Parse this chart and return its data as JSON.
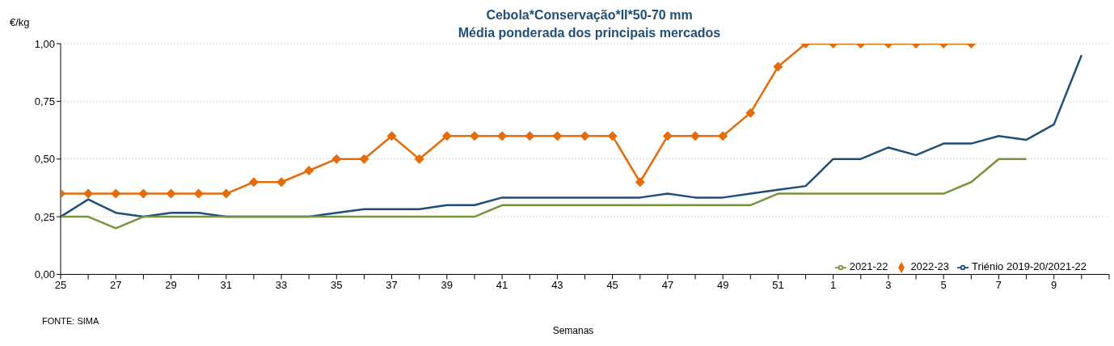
{
  "chart_data": {
    "type": "line",
    "title": "Cebola*Conservação*II*50-70 mm",
    "subtitle": "Média ponderada dos principais mercados",
    "ylabel": "€/kg",
    "xlabel": "Semanas",
    "annotations": [
      "FONTE: SIMA"
    ],
    "categories": [
      "25",
      null,
      "27",
      null,
      "29",
      null,
      "31",
      null,
      "33",
      null,
      "35",
      null,
      "37",
      null,
      "39",
      null,
      "41",
      null,
      "43",
      null,
      "45",
      null,
      "47",
      null,
      "49",
      null,
      "51",
      null,
      "1",
      null,
      "3",
      null,
      "5",
      null,
      "7",
      null,
      "9",
      null
    ],
    "ylim": [
      0,
      1
    ],
    "yticks": [
      {
        "value": 0,
        "label": "0,00"
      },
      {
        "value": 0.25,
        "label": "0,25"
      },
      {
        "value": 0.5,
        "label": "0,50"
      },
      {
        "value": 0.75,
        "label": "0,75"
      },
      {
        "value": 1,
        "label": "1,00"
      }
    ],
    "grid": "y",
    "legend": "bottom right",
    "line_style": "solid",
    "series": [
      {
        "name": "Triénio 2019-20/2021-22",
        "color": "#1f4e79",
        "marker": "none",
        "values": [
          0.25,
          0.325,
          0.267,
          0.25,
          0.267,
          0.267,
          0.25,
          0.25,
          0.25,
          0.25,
          0.267,
          0.283,
          0.283,
          0.283,
          0.3,
          0.3,
          0.333,
          0.333,
          0.333,
          0.333,
          0.333,
          0.333,
          0.35,
          0.333,
          0.333,
          0.35,
          0.367,
          0.383,
          0.5,
          0.5,
          0.55,
          0.517,
          0.567,
          0.567,
          0.6,
          0.583,
          0.65,
          0.95
        ]
      },
      {
        "name": "2021-22",
        "color": "#77933c",
        "marker": "none",
        "values": [
          0.25,
          0.25,
          0.2,
          0.25,
          0.25,
          0.25,
          0.25,
          0.25,
          0.25,
          0.25,
          0.25,
          0.25,
          0.25,
          0.25,
          0.25,
          0.25,
          0.3,
          0.3,
          0.3,
          0.3,
          0.3,
          0.3,
          0.3,
          0.3,
          0.3,
          0.3,
          0.35,
          0.35,
          0.35,
          0.35,
          0.35,
          0.35,
          0.35,
          0.4,
          0.5,
          0.5,
          null,
          null
        ]
      },
      {
        "name": "2022-23",
        "color": "#e46c0a",
        "marker": "diamond",
        "values": [
          0.35,
          0.35,
          0.35,
          0.35,
          0.35,
          0.35,
          0.35,
          0.4,
          0.4,
          0.45,
          0.5,
          0.5,
          0.6,
          0.5,
          0.6,
          0.6,
          0.6,
          0.6,
          0.6,
          0.6,
          0.6,
          0.4,
          0.6,
          0.6,
          0.6,
          0.7,
          0.9,
          1,
          1,
          1,
          1,
          1,
          1,
          1,
          null,
          null,
          null,
          null
        ]
      }
    ]
  }
}
